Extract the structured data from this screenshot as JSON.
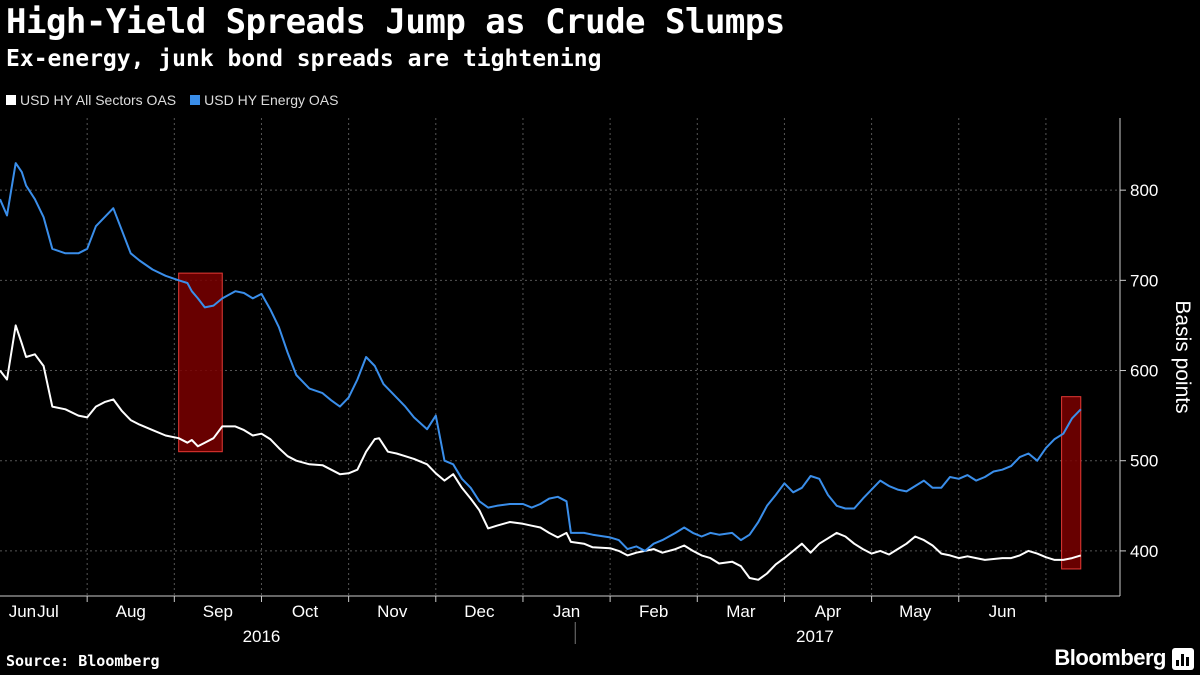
{
  "header": {
    "title": "High-Yield Spreads Jump as Crude Slumps",
    "subtitle": "Ex-energy, junk bond spreads are tightening"
  },
  "footer": {
    "source": "Source: Bloomberg",
    "brand": "Bloomberg"
  },
  "colors": {
    "background": "#000000",
    "all_sectors": "#ffffff",
    "energy": "#3a8eea",
    "highlight_fill": "#7a0000",
    "highlight_stroke": "#e53935"
  },
  "chart_data": {
    "type": "line",
    "title": "High-Yield Spreads Jump as Crude Slumps",
    "subtitle": "Ex-energy, junk bond spreads are tightening",
    "ylabel": "Basis points",
    "ylim": [
      350,
      880
    ],
    "yticks": [
      400,
      500,
      600,
      700,
      800
    ],
    "grid": true,
    "legend_position": "top-left",
    "x_domain": [
      0,
      12.85
    ],
    "month_labels": [
      "Jun",
      "Jul",
      "Aug",
      "Sep",
      "Oct",
      "Nov",
      "Dec",
      "Jan",
      "Feb",
      "Mar",
      "Apr",
      "May",
      "Jun"
    ],
    "month_positions": [
      0.1,
      0.55,
      1.5,
      2.5,
      3.5,
      4.5,
      5.5,
      6.5,
      7.5,
      8.5,
      9.5,
      10.5,
      11.5
    ],
    "gridline_positions": [
      1,
      2,
      3,
      4,
      5,
      6,
      7,
      8,
      9,
      10,
      11,
      12
    ],
    "year_labels": [
      {
        "label": "2016",
        "x": 3.0
      },
      {
        "label": "2017",
        "x": 9.35
      }
    ],
    "year_divider": 6.6,
    "highlights": [
      {
        "x0": 2.05,
        "x1": 2.55,
        "y0": 510,
        "y1": 708
      },
      {
        "x0": 12.18,
        "x1": 12.4,
        "y0": 380,
        "y1": 571
      }
    ],
    "series": [
      {
        "name": "USD HY All Sectors OAS",
        "color": "#ffffff",
        "points": [
          [
            0,
            600
          ],
          [
            0.08,
            590
          ],
          [
            0.18,
            650
          ],
          [
            0.25,
            630
          ],
          [
            0.3,
            615
          ],
          [
            0.4,
            618
          ],
          [
            0.5,
            605
          ],
          [
            0.6,
            560
          ],
          [
            0.75,
            557
          ],
          [
            0.9,
            550
          ],
          [
            1.0,
            548
          ],
          [
            1.1,
            560
          ],
          [
            1.2,
            565
          ],
          [
            1.3,
            568
          ],
          [
            1.4,
            555
          ],
          [
            1.5,
            545
          ],
          [
            1.6,
            540
          ],
          [
            1.75,
            534
          ],
          [
            1.9,
            528
          ],
          [
            2.05,
            525
          ],
          [
            2.15,
            520
          ],
          [
            2.2,
            523
          ],
          [
            2.27,
            516
          ],
          [
            2.35,
            520
          ],
          [
            2.45,
            525
          ],
          [
            2.55,
            538
          ],
          [
            2.7,
            538
          ],
          [
            2.8,
            534
          ],
          [
            2.9,
            528
          ],
          [
            3.0,
            530
          ],
          [
            3.1,
            524
          ],
          [
            3.2,
            514
          ],
          [
            3.3,
            505
          ],
          [
            3.4,
            500
          ],
          [
            3.55,
            496
          ],
          [
            3.7,
            495
          ],
          [
            3.8,
            490
          ],
          [
            3.9,
            485
          ],
          [
            4.0,
            486
          ],
          [
            4.1,
            490
          ],
          [
            4.2,
            510
          ],
          [
            4.3,
            524
          ],
          [
            4.35,
            525
          ],
          [
            4.45,
            510
          ],
          [
            4.55,
            508
          ],
          [
            4.65,
            505
          ],
          [
            4.75,
            502
          ],
          [
            4.9,
            496
          ],
          [
            5.0,
            486
          ],
          [
            5.1,
            478
          ],
          [
            5.2,
            485
          ],
          [
            5.3,
            470
          ],
          [
            5.4,
            458
          ],
          [
            5.5,
            445
          ],
          [
            5.6,
            425
          ],
          [
            5.7,
            428
          ],
          [
            5.85,
            432
          ],
          [
            6.0,
            430
          ],
          [
            6.1,
            428
          ],
          [
            6.2,
            426
          ],
          [
            6.3,
            420
          ],
          [
            6.4,
            415
          ],
          [
            6.5,
            420
          ],
          [
            6.55,
            410
          ],
          [
            6.7,
            408
          ],
          [
            6.8,
            404
          ],
          [
            7.0,
            403
          ],
          [
            7.1,
            400
          ],
          [
            7.2,
            395
          ],
          [
            7.3,
            398
          ],
          [
            7.4,
            400
          ],
          [
            7.5,
            402
          ],
          [
            7.6,
            398
          ],
          [
            7.75,
            402
          ],
          [
            7.85,
            406
          ],
          [
            7.95,
            400
          ],
          [
            8.05,
            395
          ],
          [
            8.15,
            392
          ],
          [
            8.25,
            386
          ],
          [
            8.4,
            388
          ],
          [
            8.5,
            383
          ],
          [
            8.6,
            370
          ],
          [
            8.7,
            368
          ],
          [
            8.8,
            375
          ],
          [
            8.9,
            385
          ],
          [
            9.0,
            392
          ],
          [
            9.1,
            400
          ],
          [
            9.2,
            408
          ],
          [
            9.3,
            398
          ],
          [
            9.4,
            408
          ],
          [
            9.5,
            414
          ],
          [
            9.6,
            420
          ],
          [
            9.7,
            416
          ],
          [
            9.8,
            408
          ],
          [
            9.9,
            402
          ],
          [
            10.0,
            397
          ],
          [
            10.1,
            400
          ],
          [
            10.2,
            396
          ],
          [
            10.3,
            402
          ],
          [
            10.4,
            408
          ],
          [
            10.5,
            416
          ],
          [
            10.6,
            412
          ],
          [
            10.7,
            406
          ],
          [
            10.8,
            397
          ],
          [
            10.9,
            395
          ],
          [
            11.0,
            392
          ],
          [
            11.1,
            394
          ],
          [
            11.2,
            392
          ],
          [
            11.3,
            390
          ],
          [
            11.4,
            391
          ],
          [
            11.5,
            392
          ],
          [
            11.6,
            392
          ],
          [
            11.7,
            395
          ],
          [
            11.8,
            400
          ],
          [
            11.9,
            397
          ],
          [
            12.0,
            393
          ],
          [
            12.1,
            390
          ],
          [
            12.2,
            390
          ],
          [
            12.3,
            392
          ],
          [
            12.4,
            395
          ]
        ]
      },
      {
        "name": "USD HY Energy OAS",
        "color": "#3a8eea",
        "points": [
          [
            0,
            790
          ],
          [
            0.08,
            772
          ],
          [
            0.18,
            830
          ],
          [
            0.25,
            820
          ],
          [
            0.3,
            805
          ],
          [
            0.4,
            790
          ],
          [
            0.5,
            770
          ],
          [
            0.6,
            735
          ],
          [
            0.75,
            730
          ],
          [
            0.9,
            730
          ],
          [
            1.0,
            735
          ],
          [
            1.1,
            760
          ],
          [
            1.2,
            770
          ],
          [
            1.3,
            780
          ],
          [
            1.4,
            755
          ],
          [
            1.5,
            730
          ],
          [
            1.6,
            722
          ],
          [
            1.75,
            712
          ],
          [
            1.9,
            705
          ],
          [
            2.05,
            700
          ],
          [
            2.15,
            697
          ],
          [
            2.2,
            688
          ],
          [
            2.27,
            680
          ],
          [
            2.35,
            670
          ],
          [
            2.45,
            672
          ],
          [
            2.55,
            680
          ],
          [
            2.7,
            688
          ],
          [
            2.8,
            686
          ],
          [
            2.9,
            680
          ],
          [
            3.0,
            685
          ],
          [
            3.1,
            668
          ],
          [
            3.2,
            648
          ],
          [
            3.3,
            620
          ],
          [
            3.4,
            595
          ],
          [
            3.55,
            580
          ],
          [
            3.7,
            575
          ],
          [
            3.8,
            567
          ],
          [
            3.9,
            560
          ],
          [
            4.0,
            570
          ],
          [
            4.1,
            590
          ],
          [
            4.2,
            615
          ],
          [
            4.3,
            605
          ],
          [
            4.4,
            585
          ],
          [
            4.55,
            570
          ],
          [
            4.65,
            560
          ],
          [
            4.75,
            548
          ],
          [
            4.9,
            535
          ],
          [
            5.0,
            550
          ],
          [
            5.1,
            500
          ],
          [
            5.2,
            496
          ],
          [
            5.3,
            480
          ],
          [
            5.4,
            470
          ],
          [
            5.5,
            455
          ],
          [
            5.6,
            448
          ],
          [
            5.7,
            450
          ],
          [
            5.85,
            452
          ],
          [
            6.0,
            452
          ],
          [
            6.1,
            448
          ],
          [
            6.2,
            452
          ],
          [
            6.3,
            458
          ],
          [
            6.4,
            460
          ],
          [
            6.5,
            455
          ],
          [
            6.55,
            420
          ],
          [
            6.7,
            420
          ],
          [
            6.8,
            418
          ],
          [
            7.0,
            415
          ],
          [
            7.1,
            412
          ],
          [
            7.2,
            402
          ],
          [
            7.3,
            405
          ],
          [
            7.4,
            400
          ],
          [
            7.5,
            408
          ],
          [
            7.6,
            412
          ],
          [
            7.75,
            420
          ],
          [
            7.85,
            426
          ],
          [
            7.95,
            420
          ],
          [
            8.05,
            416
          ],
          [
            8.15,
            420
          ],
          [
            8.25,
            418
          ],
          [
            8.4,
            420
          ],
          [
            8.5,
            412
          ],
          [
            8.6,
            418
          ],
          [
            8.7,
            432
          ],
          [
            8.8,
            450
          ],
          [
            8.9,
            462
          ],
          [
            9.0,
            475
          ],
          [
            9.1,
            465
          ],
          [
            9.2,
            470
          ],
          [
            9.3,
            483
          ],
          [
            9.4,
            480
          ],
          [
            9.5,
            462
          ],
          [
            9.6,
            450
          ],
          [
            9.7,
            447
          ],
          [
            9.8,
            447
          ],
          [
            9.9,
            458
          ],
          [
            10.0,
            468
          ],
          [
            10.1,
            478
          ],
          [
            10.2,
            472
          ],
          [
            10.3,
            468
          ],
          [
            10.4,
            466
          ],
          [
            10.5,
            472
          ],
          [
            10.6,
            478
          ],
          [
            10.7,
            470
          ],
          [
            10.8,
            470
          ],
          [
            10.9,
            482
          ],
          [
            11.0,
            480
          ],
          [
            11.1,
            484
          ],
          [
            11.2,
            478
          ],
          [
            11.3,
            482
          ],
          [
            11.4,
            488
          ],
          [
            11.5,
            490
          ],
          [
            11.6,
            494
          ],
          [
            11.7,
            504
          ],
          [
            11.8,
            508
          ],
          [
            11.9,
            500
          ],
          [
            12.0,
            514
          ],
          [
            12.1,
            524
          ],
          [
            12.2,
            530
          ],
          [
            12.3,
            547
          ],
          [
            12.4,
            557
          ]
        ]
      }
    ]
  }
}
